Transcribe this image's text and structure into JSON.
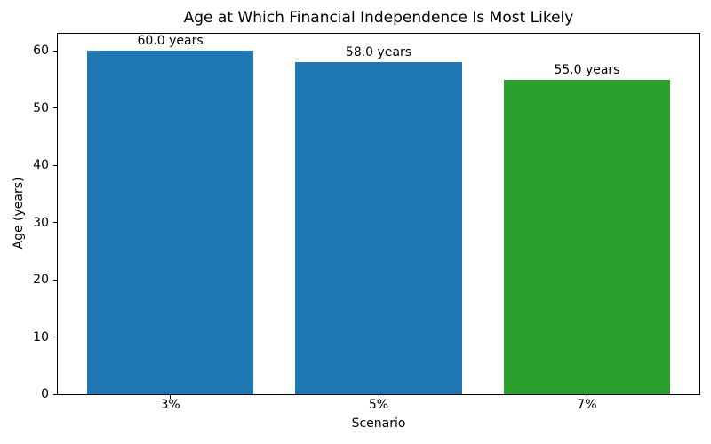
{
  "chart_data": {
    "type": "bar",
    "title": "Age at Which Financial Independence Is Most Likely",
    "xlabel": "Scenario",
    "ylabel": "Age (years)",
    "categories": [
      "3%",
      "5%",
      "7%"
    ],
    "values": [
      60.0,
      58.0,
      55.0
    ],
    "bar_labels": [
      "60.0 years",
      "58.0 years",
      "55.0 years"
    ],
    "bar_colors": [
      "#1f77b4",
      "#1f77b4",
      "#2ca02c"
    ],
    "yticks": [
      0,
      10,
      20,
      30,
      40,
      50,
      60
    ],
    "ylim": [
      0,
      63
    ],
    "bar_width_fraction": 0.8,
    "grid": false,
    "legend_position": "none",
    "frame_color": "#000000",
    "background_color": "#ffffff"
  }
}
